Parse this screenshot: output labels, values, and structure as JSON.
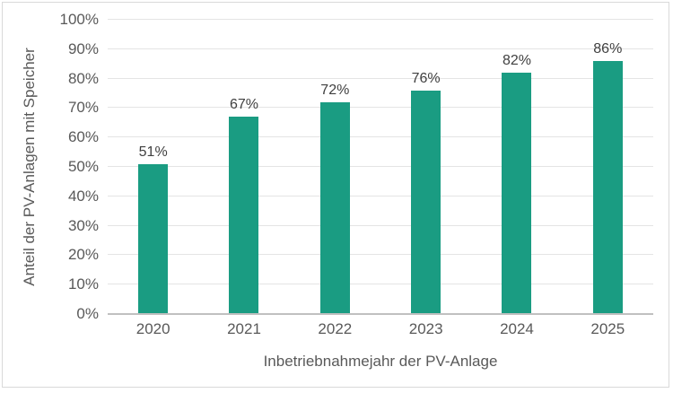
{
  "chart_data": {
    "type": "bar",
    "title": "",
    "categories": [
      "2020",
      "2021",
      "2022",
      "2023",
      "2024",
      "2025"
    ],
    "values": [
      51,
      67,
      72,
      76,
      82,
      86
    ],
    "data_labels": [
      "51%",
      "67%",
      "72%",
      "76%",
      "82%",
      "86%"
    ],
    "xlabel": "Inbetriebnahmejahr der PV-Anlage",
    "ylabel": "Anteil der PV-Anlagen mit Speicher",
    "ylim": [
      0,
      100
    ],
    "ytick_step": 10,
    "ytick_labels": [
      "0%",
      "10%",
      "20%",
      "30%",
      "40%",
      "50%",
      "60%",
      "70%",
      "80%",
      "90%",
      "100%"
    ],
    "grid": "horizontal",
    "legend": "none",
    "colors": {
      "bar": "#1A9C82",
      "gridline": "#E4E4E4",
      "axis_line": "#C0C0C0",
      "tick_text": "#595959",
      "data_label_text": "#404040",
      "axis_title_text": "#595959",
      "border": "#D9D9D9",
      "background": "#FFFFFF"
    }
  }
}
